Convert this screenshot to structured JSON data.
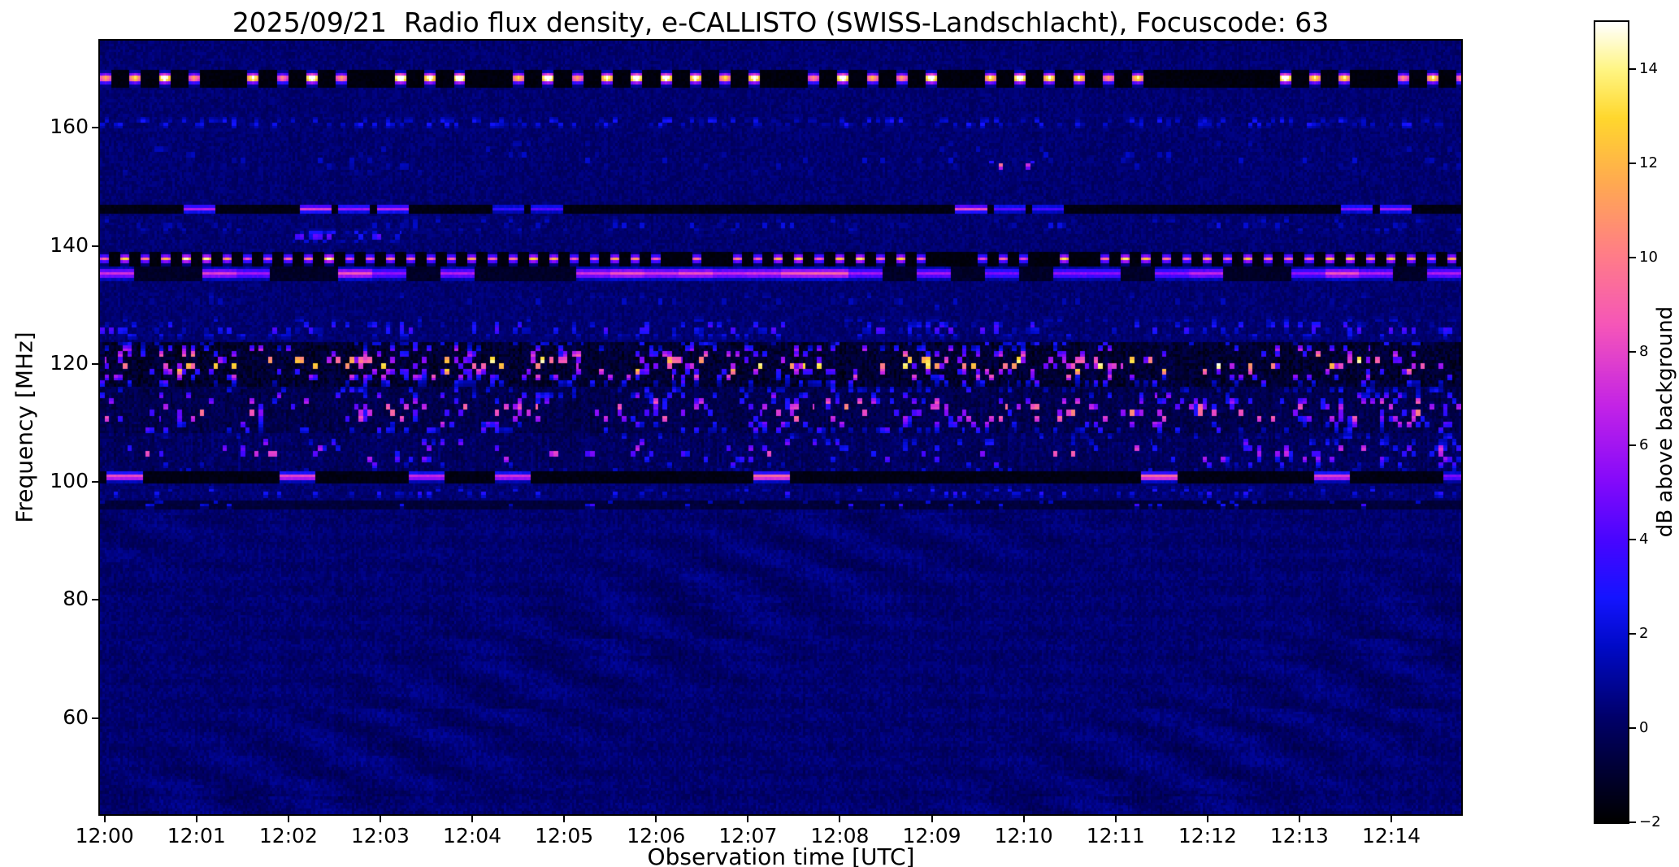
{
  "chart_data": {
    "type": "heatmap",
    "title": "2025/09/21  Radio flux density, e-CALLISTO (SWISS-Landschlacht), Focuscode: 63",
    "xlabel": "Observation time [UTC]",
    "ylabel": "Frequency [MHz]",
    "colorbar_label": "dB above background",
    "x_ticks": [
      "12:00",
      "12:01",
      "12:02",
      "12:03",
      "12:04",
      "12:05",
      "12:06",
      "12:07",
      "12:08",
      "12:09",
      "12:10",
      "12:11",
      "12:12",
      "12:13",
      "12:14"
    ],
    "x_minutes_span": 14.81,
    "x_tick_interval_minutes": 1,
    "x_first_tick_offset_minutes": 0.05,
    "y_ticks": [
      60,
      80,
      100,
      120,
      140,
      160
    ],
    "y_range_mhz": [
      43.7,
      174.8
    ],
    "value_range_db": [
      -2,
      15
    ],
    "colorbar_ticks": [
      {
        "value": -2,
        "label": "−2"
      },
      {
        "value": 0,
        "label": "0"
      },
      {
        "value": 2,
        "label": "2"
      },
      {
        "value": 4,
        "label": "4"
      },
      {
        "value": 6,
        "label": "6"
      },
      {
        "value": 8,
        "label": "8"
      },
      {
        "value": 10,
        "label": "10"
      },
      {
        "value": 12,
        "label": "12"
      },
      {
        "value": 14,
        "label": "14"
      }
    ],
    "colormap": "gnuplot2-like (black-blue-violet-magenta-pink-orange-yellow-white)",
    "colormap_stops": [
      [
        0.0,
        0,
        0,
        0
      ],
      [
        0.1,
        0,
        0,
        80
      ],
      [
        0.13,
        0,
        0,
        105
      ],
      [
        0.22,
        0,
        10,
        200
      ],
      [
        0.28,
        20,
        20,
        255
      ],
      [
        0.35,
        70,
        5,
        255
      ],
      [
        0.43,
        135,
        10,
        250
      ],
      [
        0.52,
        195,
        35,
        230
      ],
      [
        0.62,
        245,
        85,
        185
      ],
      [
        0.71,
        255,
        125,
        135
      ],
      [
        0.8,
        255,
        170,
        80
      ],
      [
        0.88,
        255,
        215,
        45
      ],
      [
        0.94,
        255,
        245,
        130
      ],
      [
        1.0,
        255,
        255,
        255
      ]
    ],
    "background_level_db": 0.3,
    "low_freq_ripple": {
      "below_mhz": 95,
      "amplitude_db": 0.35
    },
    "rfi_bands": [
      {
        "center_mhz": 168.4,
        "half_width_mhz": 1.4,
        "style": "bright_dashes",
        "dash_period": 13,
        "dash_width": 5,
        "peak_db": 15,
        "floor_db": -1.9
      },
      {
        "center_mhz": 160.9,
        "half_width_mhz": 1.5,
        "style": "speckle",
        "density": 0.3,
        "min_db": 1.0,
        "max_db": 3.2
      },
      {
        "center_mhz": 155.0,
        "half_width_mhz": 5.0,
        "style": "speckle",
        "density": 0.05,
        "min_db": 0.7,
        "max_db": 2.0
      },
      {
        "center_mhz": 153.6,
        "half_width_mhz": 0.9,
        "style": "rare_dots",
        "density": 0.03,
        "min_db": 6,
        "max_db": 11,
        "col_start": 355,
        "col_end": 425
      },
      {
        "center_mhz": 146.3,
        "half_width_mhz": 0.8,
        "style": "dark_dashes",
        "dash_period": 17,
        "lit_fraction": 0.3,
        "min_db": 3,
        "max_db": 8,
        "floor_db": -1.8
      },
      {
        "center_mhz": 143.5,
        "half_width_mhz": 2.0,
        "style": "speckle",
        "density": 0.15,
        "min_db": 0.8,
        "max_db": 2.4
      },
      {
        "center_mhz": 141.6,
        "half_width_mhz": 1.3,
        "style": "rare_dots",
        "density": 0.4,
        "min_db": 2.0,
        "max_db": 5.5,
        "col_start": 85,
        "col_end": 132
      },
      {
        "center_mhz": 137.8,
        "half_width_mhz": 1.0,
        "style": "bright_dashes",
        "dash_period": 9,
        "dash_width": 4,
        "peak_db": 12,
        "floor_db": -1.9
      },
      {
        "center_mhz": 135.3,
        "half_width_mhz": 1.1,
        "style": "segments",
        "seg_len": 15,
        "lit_fraction": 0.55,
        "min_db": 4.5,
        "max_db": 9,
        "floor_db": -1.4,
        "flare_chance": 0.06,
        "flare_db": 14
      },
      {
        "center_mhz": 130.5,
        "half_width_mhz": 2.6,
        "style": "speckle",
        "density": 0.07,
        "min_db": 0.8,
        "max_db": 2.0
      },
      {
        "center_mhz": 126.0,
        "half_width_mhz": 2.3,
        "style": "speckle",
        "density": 0.22,
        "min_db": 1.2,
        "max_db": 4.5
      },
      {
        "center_mhz": 120.0,
        "half_width_mhz": 3.6,
        "style": "busy",
        "density": 0.32,
        "min_db": 4,
        "max_db": 15,
        "floor_db": -1.6,
        "floor_noise_db": 1.3,
        "cluster_scale": 22
      },
      {
        "center_mhz": 112.0,
        "half_width_mhz": 4.2,
        "style": "busy",
        "density": 0.24,
        "min_db": 3,
        "max_db": 11,
        "floor_db": -0.9,
        "floor_noise_db": 1.1,
        "cluster_scale": 30
      },
      {
        "center_mhz": 105.0,
        "half_width_mhz": 3.2,
        "style": "busy",
        "density": 0.16,
        "min_db": 2.5,
        "max_db": 9,
        "floor_db": -0.5,
        "floor_noise_db": 1.0,
        "cluster_scale": 35
      },
      {
        "center_mhz": 100.9,
        "half_width_mhz": 0.9,
        "style": "dark_dashes",
        "dash_period": 19,
        "lit_fraction": 0.25,
        "min_db": 5,
        "max_db": 10,
        "floor_db": -1.8
      },
      {
        "center_mhz": 98.2,
        "half_width_mhz": 1.3,
        "style": "speckle",
        "density": 0.12,
        "min_db": 1.0,
        "max_db": 3.5
      },
      {
        "center_mhz": 96.2,
        "half_width_mhz": 0.7,
        "style": "dark_band",
        "floor_db": -1.0,
        "density": 0.06,
        "min_db": 1.5,
        "max_db": 4.0
      }
    ]
  }
}
